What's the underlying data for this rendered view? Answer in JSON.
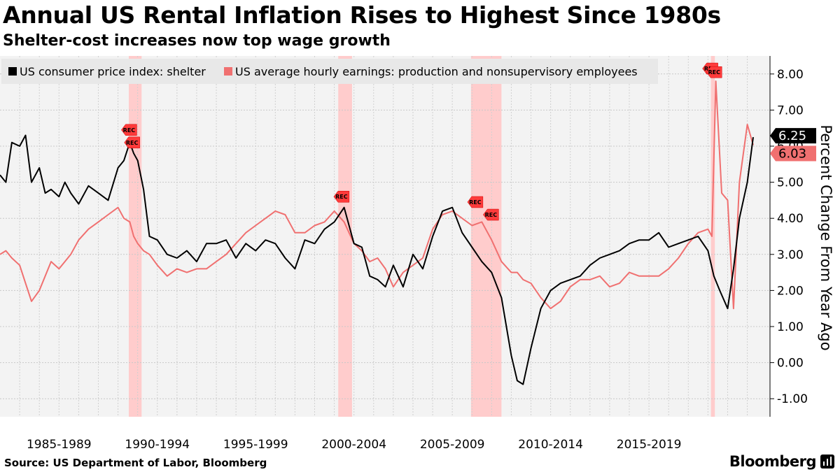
{
  "header": {
    "title": "Annual US Rental Inflation Rises to Highest Since 1980s",
    "subtitle": "Shelter-cost increases now top wage growth"
  },
  "footer": {
    "source": "Source: US Department of Labor, Bloomberg",
    "brand": "Bloomberg"
  },
  "chart_data": {
    "type": "line",
    "title": "Annual US Rental Inflation Rises to Highest Since 1980s",
    "subtitle": "Shelter-cost increases now top wage growth",
    "ylabel": "Percent Change From Year Ago",
    "xlabel": "",
    "ylim": [
      -1.5,
      8.5
    ],
    "xlim": [
      1984.0,
      2022.3
    ],
    "y_ticks": [
      -1,
      0,
      1,
      2,
      3,
      4,
      5,
      6,
      7,
      8
    ],
    "y_tick_labels": [
      "-1.00",
      "0.00",
      "1.00",
      "2.00",
      "3.00",
      "4.00",
      "5.00",
      "6.00",
      "7.00",
      "8.00"
    ],
    "x_tick_labels": [
      "1985-1989",
      "1990-1994",
      "1995-1999",
      "2000-2004",
      "2005-2009",
      "2010-2014",
      "2015-2019"
    ],
    "grid": true,
    "legend_position": "top-left",
    "recession_marker_label": "REC",
    "recessions": [
      [
        1990.55,
        1991.2
      ],
      [
        2001.2,
        2001.9
      ],
      [
        2007.95,
        2009.5
      ],
      [
        2020.15,
        2020.35
      ]
    ],
    "series": [
      {
        "name": "US consumer price index: shelter",
        "color": "#000000",
        "last_value_label": "6.25",
        "x": [
          1984.0,
          1984.3,
          1984.6,
          1985.0,
          1985.3,
          1985.6,
          1986.0,
          1986.3,
          1986.6,
          1987.0,
          1987.3,
          1987.6,
          1988.0,
          1988.5,
          1989.0,
          1989.5,
          1990.0,
          1990.3,
          1990.6,
          1990.8,
          1991.0,
          1991.3,
          1991.6,
          1992.0,
          1992.5,
          1993.0,
          1993.5,
          1994.0,
          1994.5,
          1995.0,
          1995.5,
          1996.0,
          1996.5,
          1997.0,
          1997.5,
          1998.0,
          1998.5,
          1999.0,
          1999.5,
          2000.0,
          2000.5,
          2001.0,
          2001.5,
          2002.0,
          2002.4,
          2002.8,
          2003.2,
          2003.6,
          2004.0,
          2004.5,
          2005.0,
          2005.5,
          2006.0,
          2006.5,
          2007.0,
          2007.5,
          2008.0,
          2008.5,
          2009.0,
          2009.5,
          2010.0,
          2010.3,
          2010.6,
          2011.0,
          2011.5,
          2012.0,
          2012.5,
          2013.0,
          2013.5,
          2014.0,
          2014.5,
          2015.0,
          2015.5,
          2016.0,
          2016.5,
          2017.0,
          2017.5,
          2018.0,
          2018.5,
          2019.0,
          2019.5,
          2020.0,
          2020.3,
          2020.6,
          2021.0,
          2021.3,
          2021.6,
          2022.0,
          2022.3
        ],
        "values": [
          5.2,
          5.0,
          6.1,
          6.0,
          6.3,
          5.0,
          5.4,
          4.7,
          4.8,
          4.6,
          5.0,
          4.7,
          4.4,
          4.9,
          4.7,
          4.5,
          5.4,
          5.6,
          6.1,
          5.8,
          5.6,
          4.8,
          3.5,
          3.4,
          3.0,
          2.9,
          3.1,
          2.8,
          3.3,
          3.3,
          3.4,
          2.9,
          3.3,
          3.1,
          3.4,
          3.3,
          2.9,
          2.6,
          3.4,
          3.3,
          3.7,
          3.9,
          4.3,
          3.3,
          3.2,
          2.4,
          2.3,
          2.1,
          2.7,
          2.1,
          3.0,
          2.6,
          3.5,
          4.2,
          4.3,
          3.6,
          3.2,
          2.8,
          2.5,
          1.8,
          0.2,
          -0.5,
          -0.6,
          0.4,
          1.5,
          2.0,
          2.2,
          2.3,
          2.4,
          2.7,
          2.9,
          3.0,
          3.1,
          3.3,
          3.4,
          3.4,
          3.6,
          3.2,
          3.3,
          3.4,
          3.5,
          3.1,
          2.4,
          2.0,
          1.5,
          2.6,
          4.0,
          5.0,
          6.25
        ]
      },
      {
        "name": "US average hourly earnings: production and nonsupervisory employees",
        "color": "#f07070",
        "last_value_label": "6.03",
        "x": [
          1984.0,
          1984.3,
          1984.6,
          1985.0,
          1985.3,
          1985.6,
          1986.0,
          1986.3,
          1986.6,
          1987.0,
          1987.3,
          1987.6,
          1988.0,
          1988.5,
          1989.0,
          1989.5,
          1990.0,
          1990.3,
          1990.6,
          1990.8,
          1991.0,
          1991.3,
          1991.6,
          1992.0,
          1992.5,
          1993.0,
          1993.5,
          1994.0,
          1994.5,
          1995.0,
          1995.5,
          1996.0,
          1996.5,
          1997.0,
          1997.5,
          1998.0,
          1998.5,
          1999.0,
          1999.5,
          2000.0,
          2000.5,
          2001.0,
          2001.5,
          2002.0,
          2002.4,
          2002.8,
          2003.2,
          2003.6,
          2004.0,
          2004.5,
          2005.0,
          2005.5,
          2006.0,
          2006.5,
          2007.0,
          2007.5,
          2008.0,
          2008.5,
          2009.0,
          2009.5,
          2010.0,
          2010.3,
          2010.6,
          2011.0,
          2011.5,
          2012.0,
          2012.5,
          2013.0,
          2013.5,
          2014.0,
          2014.5,
          2015.0,
          2015.5,
          2016.0,
          2016.5,
          2017.0,
          2017.5,
          2018.0,
          2018.5,
          2019.0,
          2019.5,
          2020.0,
          2020.2,
          2020.4,
          2020.7,
          2021.0,
          2021.3,
          2021.6,
          2022.0,
          2022.3
        ],
        "values": [
          3.0,
          3.1,
          2.9,
          2.7,
          2.2,
          1.7,
          2.0,
          2.4,
          2.8,
          2.6,
          2.8,
          3.0,
          3.4,
          3.7,
          3.9,
          4.1,
          4.3,
          4.0,
          3.9,
          3.5,
          3.3,
          3.1,
          3.0,
          2.7,
          2.4,
          2.6,
          2.5,
          2.6,
          2.6,
          2.8,
          3.0,
          3.3,
          3.6,
          3.8,
          4.0,
          4.2,
          4.1,
          3.6,
          3.6,
          3.8,
          3.9,
          4.2,
          3.9,
          3.3,
          3.1,
          2.8,
          2.9,
          2.6,
          2.1,
          2.5,
          2.7,
          2.9,
          3.7,
          4.1,
          4.2,
          4.0,
          3.8,
          3.9,
          3.4,
          2.8,
          2.5,
          2.5,
          2.3,
          2.2,
          1.8,
          1.5,
          1.7,
          2.1,
          2.3,
          2.3,
          2.4,
          2.1,
          2.2,
          2.5,
          2.4,
          2.4,
          2.4,
          2.6,
          2.9,
          3.3,
          3.6,
          3.7,
          3.5,
          7.8,
          4.7,
          4.5,
          1.5,
          5.0,
          6.6,
          6.03
        ]
      }
    ]
  }
}
